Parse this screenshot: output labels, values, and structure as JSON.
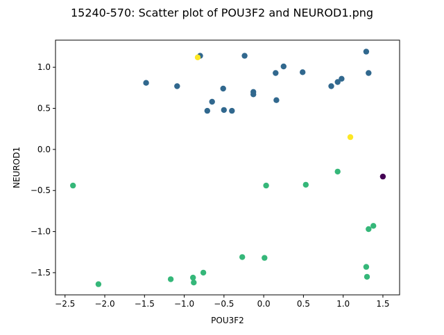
{
  "chart_data": {
    "type": "scatter",
    "title": "15240-570: Scatter plot of POU3F2 and NEUROD1.png",
    "xlabel": "POU3F2",
    "ylabel": "NEUROD1",
    "xlim": [
      -2.62,
      1.71
    ],
    "ylim": [
      -1.77,
      1.33
    ],
    "xticks": [
      -2.5,
      -2.0,
      -1.5,
      -1.0,
      -0.5,
      0.0,
      0.5,
      1.0,
      1.5
    ],
    "xtick_labels": [
      "−2.5",
      "−2.0",
      "−1.5",
      "−1.0",
      "−0.5",
      "0.0",
      "0.5",
      "1.0",
      "1.5"
    ],
    "yticks": [
      -1.5,
      -1.0,
      -0.5,
      0.0,
      0.5,
      1.0
    ],
    "ytick_labels": [
      "−1.5",
      "−1.0",
      "−0.5",
      "0.0",
      "0.5",
      "1.0"
    ],
    "grid": false,
    "legend": false,
    "colors": {
      "blue": "#31688e",
      "green": "#35b779",
      "yellow": "#fde725",
      "purple": "#440154"
    },
    "points": [
      {
        "x": -0.8,
        "y": 1.14,
        "c": "blue"
      },
      {
        "x": -0.24,
        "y": 1.14,
        "c": "blue"
      },
      {
        "x": 1.29,
        "y": 1.19,
        "c": "blue"
      },
      {
        "x": -0.83,
        "y": 1.12,
        "c": "yellow"
      },
      {
        "x": 0.25,
        "y": 1.01,
        "c": "blue"
      },
      {
        "x": 0.49,
        "y": 0.94,
        "c": "blue"
      },
      {
        "x": 0.15,
        "y": 0.93,
        "c": "blue"
      },
      {
        "x": 1.32,
        "y": 0.93,
        "c": "blue"
      },
      {
        "x": 0.98,
        "y": 0.86,
        "c": "blue"
      },
      {
        "x": 0.93,
        "y": 0.82,
        "c": "blue"
      },
      {
        "x": 0.85,
        "y": 0.77,
        "c": "blue"
      },
      {
        "x": -1.48,
        "y": 0.81,
        "c": "blue"
      },
      {
        "x": -1.09,
        "y": 0.77,
        "c": "blue"
      },
      {
        "x": -0.51,
        "y": 0.74,
        "c": "blue"
      },
      {
        "x": -0.13,
        "y": 0.7,
        "c": "blue"
      },
      {
        "x": -0.13,
        "y": 0.67,
        "c": "blue"
      },
      {
        "x": 0.16,
        "y": 0.6,
        "c": "blue"
      },
      {
        "x": -0.65,
        "y": 0.58,
        "c": "blue"
      },
      {
        "x": -0.71,
        "y": 0.47,
        "c": "blue"
      },
      {
        "x": -0.5,
        "y": 0.48,
        "c": "blue"
      },
      {
        "x": -0.4,
        "y": 0.47,
        "c": "blue"
      },
      {
        "x": 1.09,
        "y": 0.15,
        "c": "yellow"
      },
      {
        "x": 0.93,
        "y": -0.27,
        "c": "green"
      },
      {
        "x": 1.5,
        "y": -0.33,
        "c": "purple"
      },
      {
        "x": -2.4,
        "y": -0.44,
        "c": "green"
      },
      {
        "x": 0.03,
        "y": -0.44,
        "c": "green"
      },
      {
        "x": 0.53,
        "y": -0.43,
        "c": "green"
      },
      {
        "x": 1.38,
        "y": -0.93,
        "c": "green"
      },
      {
        "x": 1.32,
        "y": -0.97,
        "c": "green"
      },
      {
        "x": -0.27,
        "y": -1.31,
        "c": "green"
      },
      {
        "x": 0.01,
        "y": -1.32,
        "c": "green"
      },
      {
        "x": 1.29,
        "y": -1.43,
        "c": "green"
      },
      {
        "x": 1.3,
        "y": -1.55,
        "c": "green"
      },
      {
        "x": -0.76,
        "y": -1.5,
        "c": "green"
      },
      {
        "x": -0.89,
        "y": -1.56,
        "c": "green"
      },
      {
        "x": -0.88,
        "y": -1.62,
        "c": "green"
      },
      {
        "x": -1.17,
        "y": -1.58,
        "c": "green"
      },
      {
        "x": -2.08,
        "y": -1.64,
        "c": "green"
      }
    ]
  }
}
